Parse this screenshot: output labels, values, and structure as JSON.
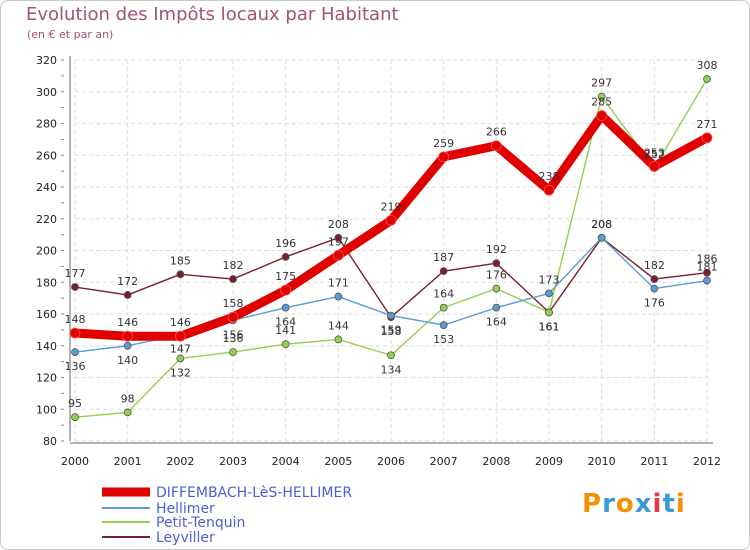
{
  "chart_data": {
    "type": "line",
    "title": "Evolution des Impôts locaux par Habitant",
    "subtitle": "(en € et par an)",
    "categories": [
      "2000",
      "2001",
      "2002",
      "2003",
      "2004",
      "2005",
      "2006",
      "2007",
      "2008",
      "2009",
      "2010",
      "2011",
      "2012"
    ],
    "ylim": [
      80,
      320
    ],
    "yticks": [
      80,
      100,
      120,
      140,
      160,
      180,
      200,
      220,
      240,
      260,
      280,
      300,
      320
    ],
    "series": [
      {
        "name": "DIFFEMBACH-LèS-HELLIMER",
        "color": "#e00000",
        "values": [
          148,
          146,
          146,
          158,
          175,
          197,
          219,
          259,
          266,
          238,
          285,
          253,
          271
        ]
      },
      {
        "name": "Hellimer",
        "color": "#5b9bd5",
        "values": [
          136,
          140,
          147,
          156,
          164,
          171,
          159,
          153,
          164,
          173,
          208,
          176,
          181
        ]
      },
      {
        "name": "Petit-Tenquin",
        "color": "#92d050",
        "values": [
          95,
          98,
          132,
          136,
          141,
          144,
          134,
          164,
          176,
          161,
          297,
          252,
          308
        ]
      },
      {
        "name": "Leyviller",
        "color": "#7a1f2b",
        "values": [
          177,
          172,
          185,
          182,
          196,
          208,
          158,
          187,
          192,
          161,
          208,
          182,
          186
        ]
      }
    ]
  },
  "brand": {
    "letters": [
      "P",
      "r",
      "o",
      "x",
      "i",
      "t",
      "i"
    ],
    "colors": [
      "#f39200",
      "#3a9ad9",
      "#f39200",
      "#3a9ad9",
      "#e63946",
      "#3a9ad9",
      "#f39200"
    ]
  }
}
